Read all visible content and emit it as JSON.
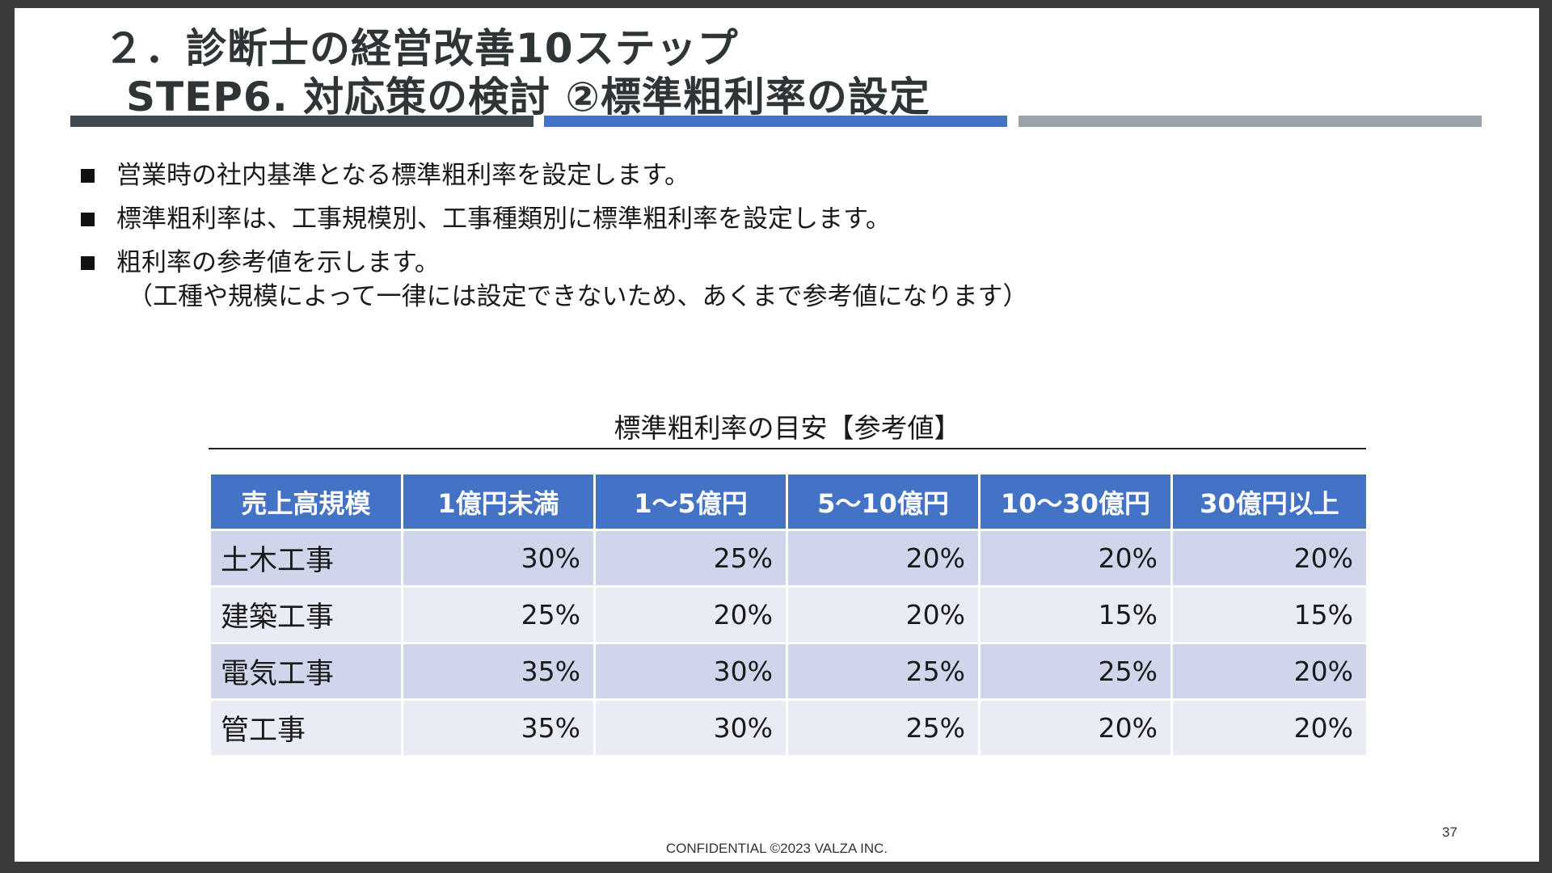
{
  "header": {
    "line1": "２．診断士の経営改善10ステップ",
    "line2": "STEP6. 対応策の検討 ②標準粗利率の設定"
  },
  "bullets": [
    {
      "text": "営業時の社内基準となる標準粗利率を設定します。"
    },
    {
      "text": "標準粗利率は、工事規模別、工事種類別に標準粗利率を設定します。"
    },
    {
      "text": "粗利率の参考値を示します。",
      "sub": "（工種や規模によって一律には設定できないため、あくまで参考値になります）"
    }
  ],
  "table": {
    "caption": "標準粗利率の目安【参考値】",
    "headers": [
      "売上高規模",
      "1億円未満",
      "1～5億円",
      "5～10億円",
      "10～30億円",
      "30億円以上"
    ],
    "rows": [
      [
        "土木工事",
        "30%",
        "25%",
        "20%",
        "20%",
        "20%"
      ],
      [
        "建築工事",
        "25%",
        "20%",
        "20%",
        "15%",
        "15%"
      ],
      [
        "電気工事",
        "35%",
        "30%",
        "25%",
        "25%",
        "20%"
      ],
      [
        "管工事",
        "35%",
        "30%",
        "25%",
        "20%",
        "20%"
      ]
    ]
  },
  "footer": {
    "confidential": "CONFIDENTIAL ©2023 VALZA INC.",
    "page_number": "37"
  },
  "colors": {
    "header_bg": "#4472c4",
    "row_odd": "#cfd5ea",
    "row_even": "#e9ebf5",
    "rule_dark": "#3f4a4f",
    "rule_blue": "#4472c4",
    "rule_gray": "#9aa3a8"
  }
}
